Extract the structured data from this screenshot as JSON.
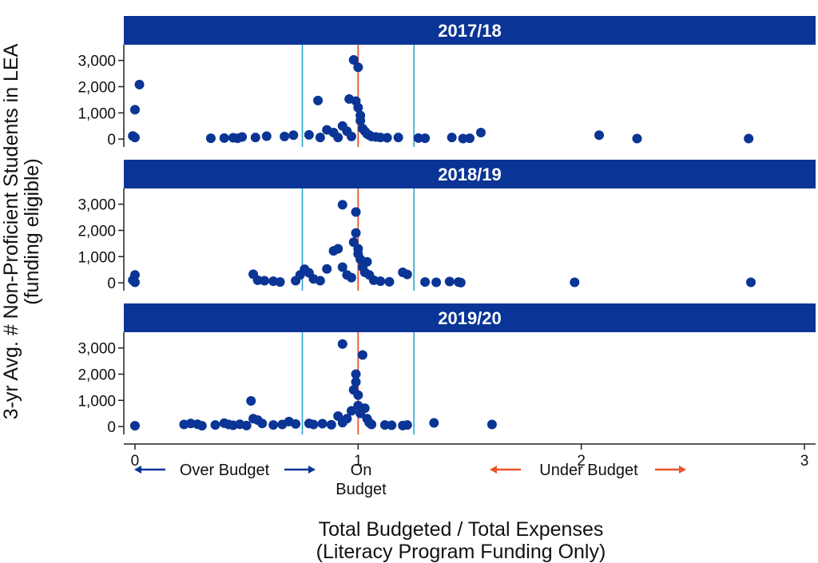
{
  "colors": {
    "header": "#0a3596",
    "header_text": "#ffffff",
    "point": "#0a3596",
    "band_line": "#2aa7c9",
    "center_line": "#e8542a",
    "axis": "#222222",
    "over_budget_arrow": "#0a3596",
    "under_budget_arrow": "#e8542a"
  },
  "chart_data": {
    "type": "scatter",
    "ylabel_line1": "3-yr Avg. # Non-Proficient Students in LEA",
    "ylabel_line2": "(funding eligible)",
    "xlabel_line1": "Total Budgeted / Total Expenses",
    "xlabel_line2": "(Literacy Program Funding Only)",
    "xlim": [
      -0.05,
      3.05
    ],
    "ylim": [
      -300,
      3600
    ],
    "x_ticks": [
      0,
      1,
      2,
      3
    ],
    "x_tick_labels": [
      "0",
      "1",
      "2",
      "3"
    ],
    "y_ticks": [
      0,
      1000,
      2000,
      3000
    ],
    "y_tick_labels": [
      "0",
      "1,000",
      "2,000",
      "3,000"
    ],
    "reference_lines": {
      "band": [
        0.75,
        1.25
      ],
      "center": 1.0
    },
    "annotations": {
      "over_budget": "Over Budget",
      "on_budget_line1": "On",
      "on_budget_line2": "Budget",
      "under_budget": "Under Budget"
    },
    "panels": [
      {
        "title": "2017/18",
        "points": [
          [
            0.0,
            1120
          ],
          [
            0.02,
            2080
          ],
          [
            -0.01,
            120
          ],
          [
            0.0,
            60
          ],
          [
            0.34,
            30
          ],
          [
            0.4,
            40
          ],
          [
            0.44,
            50
          ],
          [
            0.46,
            30
          ],
          [
            0.48,
            80
          ],
          [
            0.54,
            60
          ],
          [
            0.59,
            110
          ],
          [
            0.67,
            100
          ],
          [
            0.71,
            150
          ],
          [
            0.78,
            160
          ],
          [
            0.82,
            1470
          ],
          [
            0.83,
            60
          ],
          [
            0.86,
            350
          ],
          [
            0.89,
            250
          ],
          [
            0.91,
            60
          ],
          [
            0.93,
            500
          ],
          [
            0.95,
            300
          ],
          [
            0.96,
            1530
          ],
          [
            0.97,
            100
          ],
          [
            0.98,
            3020
          ],
          [
            0.99,
            1450
          ],
          [
            1.0,
            2740
          ],
          [
            1.0,
            1200
          ],
          [
            1.01,
            900
          ],
          [
            1.01,
            700
          ],
          [
            1.02,
            400
          ],
          [
            1.03,
            300
          ],
          [
            1.04,
            200
          ],
          [
            1.05,
            150
          ],
          [
            1.06,
            100
          ],
          [
            1.08,
            80
          ],
          [
            1.1,
            60
          ],
          [
            1.13,
            50
          ],
          [
            1.18,
            60
          ],
          [
            1.27,
            40
          ],
          [
            1.3,
            30
          ],
          [
            1.42,
            60
          ],
          [
            1.47,
            20
          ],
          [
            1.5,
            30
          ],
          [
            1.55,
            250
          ],
          [
            2.08,
            150
          ],
          [
            2.25,
            20
          ],
          [
            2.75,
            20
          ]
        ]
      },
      {
        "title": "2018/19",
        "points": [
          [
            0.0,
            300
          ],
          [
            -0.01,
            100
          ],
          [
            0.0,
            20
          ],
          [
            0.53,
            330
          ],
          [
            0.55,
            100
          ],
          [
            0.58,
            80
          ],
          [
            0.62,
            60
          ],
          [
            0.65,
            30
          ],
          [
            0.72,
            80
          ],
          [
            0.74,
            300
          ],
          [
            0.76,
            520
          ],
          [
            0.78,
            380
          ],
          [
            0.8,
            150
          ],
          [
            0.83,
            80
          ],
          [
            0.86,
            530
          ],
          [
            0.89,
            1220
          ],
          [
            0.91,
            1300
          ],
          [
            0.93,
            2980
          ],
          [
            0.93,
            600
          ],
          [
            0.95,
            300
          ],
          [
            0.97,
            200
          ],
          [
            0.98,
            1550
          ],
          [
            0.99,
            2700
          ],
          [
            0.99,
            1900
          ],
          [
            1.0,
            1300
          ],
          [
            1.0,
            1100
          ],
          [
            1.01,
            900
          ],
          [
            1.02,
            600
          ],
          [
            1.03,
            400
          ],
          [
            1.04,
            800
          ],
          [
            1.05,
            300
          ],
          [
            1.07,
            100
          ],
          [
            1.1,
            60
          ],
          [
            1.14,
            40
          ],
          [
            1.2,
            400
          ],
          [
            1.22,
            320
          ],
          [
            1.3,
            30
          ],
          [
            1.35,
            20
          ],
          [
            1.41,
            50
          ],
          [
            1.45,
            30
          ],
          [
            1.46,
            10
          ],
          [
            1.97,
            20
          ],
          [
            2.76,
            20
          ]
        ]
      },
      {
        "title": "2019/20",
        "points": [
          [
            0.0,
            30
          ],
          [
            0.22,
            80
          ],
          [
            0.25,
            120
          ],
          [
            0.28,
            90
          ],
          [
            0.3,
            30
          ],
          [
            0.36,
            60
          ],
          [
            0.4,
            130
          ],
          [
            0.42,
            80
          ],
          [
            0.44,
            50
          ],
          [
            0.47,
            90
          ],
          [
            0.5,
            40
          ],
          [
            0.52,
            980
          ],
          [
            0.53,
            300
          ],
          [
            0.55,
            250
          ],
          [
            0.57,
            120
          ],
          [
            0.62,
            60
          ],
          [
            0.66,
            80
          ],
          [
            0.69,
            190
          ],
          [
            0.72,
            100
          ],
          [
            0.78,
            120
          ],
          [
            0.8,
            80
          ],
          [
            0.84,
            110
          ],
          [
            0.88,
            70
          ],
          [
            0.91,
            400
          ],
          [
            0.93,
            3150
          ],
          [
            0.93,
            150
          ],
          [
            0.95,
            300
          ],
          [
            0.97,
            600
          ],
          [
            0.98,
            1400
          ],
          [
            0.99,
            1700
          ],
          [
            0.99,
            2000
          ],
          [
            1.0,
            1200
          ],
          [
            1.0,
            800
          ],
          [
            1.01,
            500
          ],
          [
            1.02,
            2730
          ],
          [
            1.03,
            700
          ],
          [
            1.04,
            300
          ],
          [
            1.05,
            150
          ],
          [
            1.06,
            80
          ],
          [
            1.12,
            60
          ],
          [
            1.15,
            50
          ],
          [
            1.2,
            40
          ],
          [
            1.22,
            60
          ],
          [
            1.34,
            140
          ],
          [
            1.6,
            80
          ]
        ]
      }
    ]
  }
}
